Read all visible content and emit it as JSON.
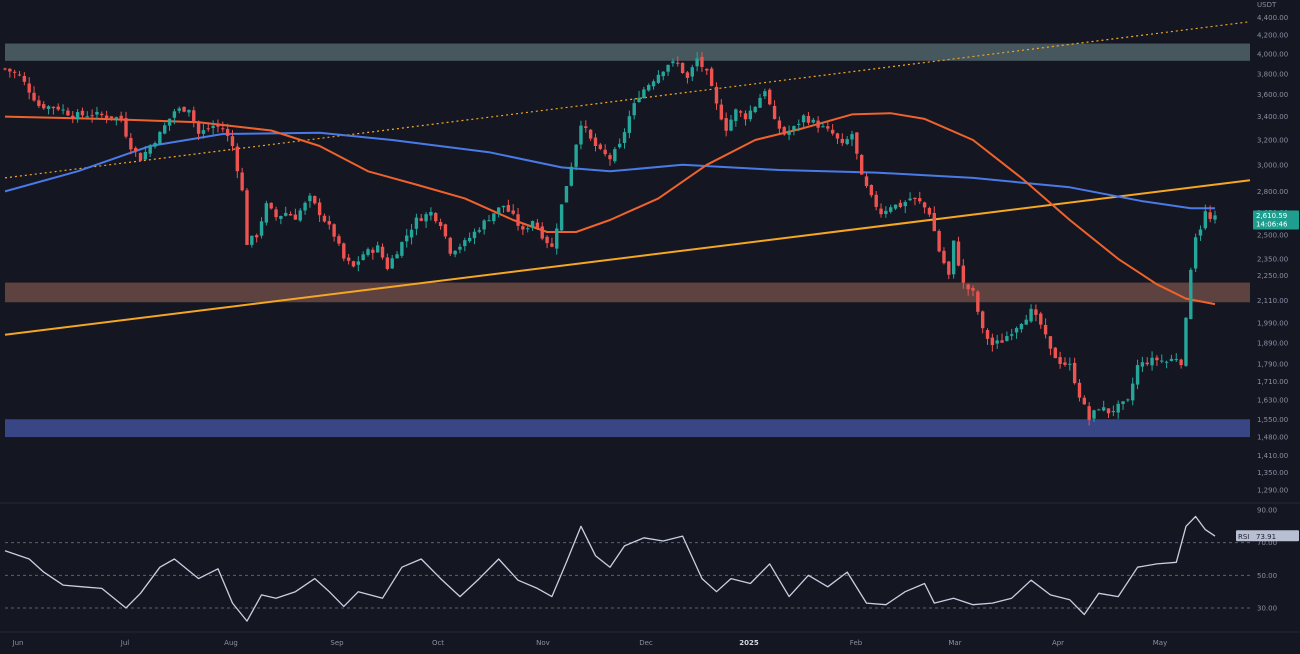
{
  "currency_label": "USDT",
  "colors": {
    "background": "#141722",
    "up": "#26a69a",
    "down": "#ef5350",
    "ma_fast": "#f0622c",
    "ma_slow": "#4a7ae8",
    "trendline": "#f5a623",
    "rsi_line": "#c9cfe2",
    "zone_top": "#4f6469",
    "zone_mid": "#6b4a45",
    "zone_bottom": "#3f4f96",
    "axis_text": "#8a8fa3",
    "last_price_bg": "#1f9e8f",
    "rsi_badge_bg": "#b9bfd2",
    "rsi_badge_text": "#1b1e2b"
  },
  "last_price": {
    "price": "2,610.59",
    "countdown": "14:06:46"
  },
  "rsi_badge": {
    "label": "RSI",
    "value": "73.91"
  },
  "chart_data": [
    {
      "type": "candlestick",
      "pair_quote": "USDT",
      "y_scale": "log",
      "ylim": [
        1240,
        4700
      ],
      "x_tick_labels": [
        "Jun",
        "Jul",
        "Aug",
        "Sep",
        "Oct",
        "Nov",
        "Dec",
        "2025",
        "Feb",
        "Mar",
        "Apr",
        "May"
      ],
      "y_tick_labels": [
        {
          "value": 4400,
          "label": "4,400.00"
        },
        {
          "value": 4200,
          "label": "4,200.00"
        },
        {
          "value": 4000,
          "label": "4,000.00"
        },
        {
          "value": 3800,
          "label": "3,800.00"
        },
        {
          "value": 3600,
          "label": "3,600.00"
        },
        {
          "value": 3400,
          "label": "3,400.00"
        },
        {
          "value": 3200,
          "label": "3,200.00"
        },
        {
          "value": 3000,
          "label": "3,000.00"
        },
        {
          "value": 2800,
          "label": "2,800.00"
        },
        {
          "value": 2650,
          "label": "2,650.00"
        },
        {
          "value": 2500,
          "label": "2,500.00"
        },
        {
          "value": 2350,
          "label": "2,350.00"
        },
        {
          "value": 2250,
          "label": "2,250.00"
        },
        {
          "value": 2110,
          "label": "2,110.00"
        },
        {
          "value": 1990,
          "label": "1,990.00"
        },
        {
          "value": 1890,
          "label": "1,890.00"
        },
        {
          "value": 1790,
          "label": "1,790.00"
        },
        {
          "value": 1710,
          "label": "1,710.00"
        },
        {
          "value": 1630,
          "label": "1,630.00"
        },
        {
          "value": 1550,
          "label": "1,550.00"
        },
        {
          "value": 1480,
          "label": "1,480.00"
        },
        {
          "value": 1410,
          "label": "1,410.00"
        },
        {
          "value": 1350,
          "label": "1,350.00"
        },
        {
          "value": 1290,
          "label": "1,290.00"
        }
      ],
      "zones": [
        {
          "name": "resistance",
          "low": 3930,
          "high": 4110
        },
        {
          "name": "mid-support",
          "low": 2100,
          "high": 2210
        },
        {
          "name": "support",
          "low": 1480,
          "high": 1550
        }
      ],
      "close_path": [
        {
          "t": 0,
          "v": 3850
        },
        {
          "t": 3,
          "v": 3780
        },
        {
          "t": 7,
          "v": 3500
        },
        {
          "t": 11,
          "v": 3480
        },
        {
          "t": 14,
          "v": 3410
        },
        {
          "t": 18,
          "v": 3420
        },
        {
          "t": 22,
          "v": 3400
        },
        {
          "t": 24,
          "v": 3380
        },
        {
          "t": 25,
          "v": 3250
        },
        {
          "t": 26,
          "v": 3150
        },
        {
          "t": 28,
          "v": 3050
        },
        {
          "t": 30,
          "v": 3150
        },
        {
          "t": 32,
          "v": 3250
        },
        {
          "t": 35,
          "v": 3450
        },
        {
          "t": 38,
          "v": 3480
        },
        {
          "t": 40,
          "v": 3250
        },
        {
          "t": 43,
          "v": 3320
        },
        {
          "t": 45,
          "v": 3300
        },
        {
          "t": 47,
          "v": 3150
        },
        {
          "t": 49,
          "v": 2800
        },
        {
          "t": 50,
          "v": 2450
        },
        {
          "t": 52,
          "v": 2500
        },
        {
          "t": 54,
          "v": 2700
        },
        {
          "t": 56,
          "v": 2620
        },
        {
          "t": 58,
          "v": 2650
        },
        {
          "t": 60,
          "v": 2620
        },
        {
          "t": 63,
          "v": 2750
        },
        {
          "t": 66,
          "v": 2600
        },
        {
          "t": 68,
          "v": 2500
        },
        {
          "t": 70,
          "v": 2350
        },
        {
          "t": 72,
          "v": 2300
        },
        {
          "t": 74,
          "v": 2380
        },
        {
          "t": 77,
          "v": 2420
        },
        {
          "t": 79,
          "v": 2300
        },
        {
          "t": 82,
          "v": 2450
        },
        {
          "t": 85,
          "v": 2600
        },
        {
          "t": 88,
          "v": 2650
        },
        {
          "t": 90,
          "v": 2580
        },
        {
          "t": 92,
          "v": 2400
        },
        {
          "t": 95,
          "v": 2450
        },
        {
          "t": 98,
          "v": 2550
        },
        {
          "t": 101,
          "v": 2650
        },
        {
          "t": 103,
          "v": 2700
        },
        {
          "t": 105,
          "v": 2620
        },
        {
          "t": 107,
          "v": 2520
        },
        {
          "t": 109,
          "v": 2600
        },
        {
          "t": 111,
          "v": 2500
        },
        {
          "t": 113,
          "v": 2420
        },
        {
          "t": 115,
          "v": 2700
        },
        {
          "t": 117,
          "v": 3000
        },
        {
          "t": 119,
          "v": 3350
        },
        {
          "t": 121,
          "v": 3200
        },
        {
          "t": 123,
          "v": 3100
        },
        {
          "t": 125,
          "v": 3050
        },
        {
          "t": 127,
          "v": 3150
        },
        {
          "t": 129,
          "v": 3400
        },
        {
          "t": 131,
          "v": 3600
        },
        {
          "t": 133,
          "v": 3700
        },
        {
          "t": 135,
          "v": 3800
        },
        {
          "t": 137,
          "v": 3900
        },
        {
          "t": 139,
          "v": 3900
        },
        {
          "t": 141,
          "v": 3750
        },
        {
          "t": 143,
          "v": 3950
        },
        {
          "t": 145,
          "v": 3800
        },
        {
          "t": 147,
          "v": 3500
        },
        {
          "t": 149,
          "v": 3300
        },
        {
          "t": 151,
          "v": 3450
        },
        {
          "t": 153,
          "v": 3400
        },
        {
          "t": 155,
          "v": 3500
        },
        {
          "t": 157,
          "v": 3650
        },
        {
          "t": 159,
          "v": 3350
        },
        {
          "t": 161,
          "v": 3250
        },
        {
          "t": 163,
          "v": 3300
        },
        {
          "t": 165,
          "v": 3400
        },
        {
          "t": 167,
          "v": 3350
        },
        {
          "t": 169,
          "v": 3300
        },
        {
          "t": 171,
          "v": 3250
        },
        {
          "t": 173,
          "v": 3150
        },
        {
          "t": 175,
          "v": 3250
        },
        {
          "t": 177,
          "v": 2900
        },
        {
          "t": 179,
          "v": 2750
        },
        {
          "t": 181,
          "v": 2650
        },
        {
          "t": 183,
          "v": 2700
        },
        {
          "t": 185,
          "v": 2700
        },
        {
          "t": 187,
          "v": 2750
        },
        {
          "t": 189,
          "v": 2720
        },
        {
          "t": 191,
          "v": 2650
        },
        {
          "t": 193,
          "v": 2400
        },
        {
          "t": 195,
          "v": 2250
        },
        {
          "t": 196,
          "v": 2450
        },
        {
          "t": 198,
          "v": 2200
        },
        {
          "t": 200,
          "v": 2150
        },
        {
          "t": 202,
          "v": 1950
        },
        {
          "t": 204,
          "v": 1880
        },
        {
          "t": 206,
          "v": 1900
        },
        {
          "t": 208,
          "v": 1950
        },
        {
          "t": 210,
          "v": 2000
        },
        {
          "t": 212,
          "v": 2050
        },
        {
          "t": 214,
          "v": 1980
        },
        {
          "t": 216,
          "v": 1850
        },
        {
          "t": 218,
          "v": 1800
        },
        {
          "t": 220,
          "v": 1780
        },
        {
          "t": 222,
          "v": 1650
        },
        {
          "t": 224,
          "v": 1550
        },
        {
          "t": 226,
          "v": 1600
        },
        {
          "t": 228,
          "v": 1580
        },
        {
          "t": 230,
          "v": 1600
        },
        {
          "t": 232,
          "v": 1620
        },
        {
          "t": 234,
          "v": 1780
        },
        {
          "t": 236,
          "v": 1800
        },
        {
          "t": 238,
          "v": 1810
        },
        {
          "t": 240,
          "v": 1800
        },
        {
          "t": 242,
          "v": 1820
        },
        {
          "t": 243,
          "v": 1800
        },
        {
          "t": 244,
          "v": 2000
        },
        {
          "t": 245,
          "v": 2300
        },
        {
          "t": 246,
          "v": 2500
        },
        {
          "t": 247,
          "v": 2550
        },
        {
          "t": 248,
          "v": 2650
        },
        {
          "t": 249,
          "v": 2600
        },
        {
          "t": 250,
          "v": 2610
        }
      ],
      "sma_fast_path": [
        {
          "t": 0,
          "v": 3400
        },
        {
          "t": 20,
          "v": 3380
        },
        {
          "t": 40,
          "v": 3350
        },
        {
          "t": 55,
          "v": 3280
        },
        {
          "t": 65,
          "v": 3150
        },
        {
          "t": 75,
          "v": 2950
        },
        {
          "t": 85,
          "v": 2850
        },
        {
          "t": 95,
          "v": 2750
        },
        {
          "t": 105,
          "v": 2600
        },
        {
          "t": 112,
          "v": 2520
        },
        {
          "t": 118,
          "v": 2520
        },
        {
          "t": 125,
          "v": 2600
        },
        {
          "t": 135,
          "v": 2750
        },
        {
          "t": 145,
          "v": 3000
        },
        {
          "t": 155,
          "v": 3200
        },
        {
          "t": 165,
          "v": 3300
        },
        {
          "t": 175,
          "v": 3420
        },
        {
          "t": 183,
          "v": 3430
        },
        {
          "t": 190,
          "v": 3380
        },
        {
          "t": 200,
          "v": 3200
        },
        {
          "t": 210,
          "v": 2900
        },
        {
          "t": 220,
          "v": 2600
        },
        {
          "t": 230,
          "v": 2350
        },
        {
          "t": 238,
          "v": 2200
        },
        {
          "t": 244,
          "v": 2120
        },
        {
          "t": 250,
          "v": 2090
        }
      ],
      "sma_slow_path": [
        {
          "t": 0,
          "v": 2800
        },
        {
          "t": 15,
          "v": 2950
        },
        {
          "t": 30,
          "v": 3150
        },
        {
          "t": 45,
          "v": 3250
        },
        {
          "t": 65,
          "v": 3260
        },
        {
          "t": 80,
          "v": 3200
        },
        {
          "t": 100,
          "v": 3100
        },
        {
          "t": 115,
          "v": 2980
        },
        {
          "t": 125,
          "v": 2950
        },
        {
          "t": 140,
          "v": 3000
        },
        {
          "t": 160,
          "v": 2960
        },
        {
          "t": 180,
          "v": 2940
        },
        {
          "t": 200,
          "v": 2900
        },
        {
          "t": 220,
          "v": 2830
        },
        {
          "t": 235,
          "v": 2730
        },
        {
          "t": 245,
          "v": 2680
        },
        {
          "t": 250,
          "v": 2680
        }
      ],
      "trendlines": [
        {
          "name": "ascending-support",
          "style": "solid",
          "from": {
            "t": 0,
            "v": 1930
          },
          "to": {
            "t": 250,
            "v": 2850
          }
        },
        {
          "name": "ascending-resistance",
          "style": "dotted",
          "from": {
            "t": 0,
            "v": 2900
          },
          "to": {
            "t": 250,
            "v": 4300
          }
        },
        {
          "name": "upper-channel",
          "style": "solid",
          "from": {
            "t": 0,
            "v": 4650
          },
          "to": {
            "t": 32,
            "v": 4800
          }
        }
      ]
    },
    {
      "type": "line",
      "name": "RSI",
      "ylim": [
        20,
        90
      ],
      "y_tick_labels": [
        {
          "value": 90,
          "label": "90.00"
        },
        {
          "value": 70,
          "label": "70.00"
        },
        {
          "value": 50,
          "label": "50.00"
        },
        {
          "value": 30,
          "label": "30.00"
        }
      ],
      "reference_lines": [
        70,
        50,
        30
      ],
      "series": [
        {
          "t": 0,
          "v": 65
        },
        {
          "t": 5,
          "v": 60
        },
        {
          "t": 8,
          "v": 52
        },
        {
          "t": 12,
          "v": 44
        },
        {
          "t": 16,
          "v": 43
        },
        {
          "t": 20,
          "v": 42
        },
        {
          "t": 25,
          "v": 30
        },
        {
          "t": 28,
          "v": 39
        },
        {
          "t": 32,
          "v": 55
        },
        {
          "t": 35,
          "v": 60
        },
        {
          "t": 40,
          "v": 48
        },
        {
          "t": 44,
          "v": 54
        },
        {
          "t": 47,
          "v": 33
        },
        {
          "t": 50,
          "v": 22
        },
        {
          "t": 53,
          "v": 38
        },
        {
          "t": 56,
          "v": 36
        },
        {
          "t": 60,
          "v": 40
        },
        {
          "t": 64,
          "v": 48
        },
        {
          "t": 67,
          "v": 40
        },
        {
          "t": 70,
          "v": 31
        },
        {
          "t": 73,
          "v": 40
        },
        {
          "t": 78,
          "v": 36
        },
        {
          "t": 82,
          "v": 55
        },
        {
          "t": 86,
          "v": 60
        },
        {
          "t": 90,
          "v": 48
        },
        {
          "t": 94,
          "v": 37
        },
        {
          "t": 98,
          "v": 48
        },
        {
          "t": 102,
          "v": 60
        },
        {
          "t": 106,
          "v": 47
        },
        {
          "t": 110,
          "v": 42
        },
        {
          "t": 113,
          "v": 37
        },
        {
          "t": 116,
          "v": 58
        },
        {
          "t": 119,
          "v": 80
        },
        {
          "t": 122,
          "v": 62
        },
        {
          "t": 125,
          "v": 55
        },
        {
          "t": 128,
          "v": 68
        },
        {
          "t": 132,
          "v": 73
        },
        {
          "t": 136,
          "v": 71
        },
        {
          "t": 140,
          "v": 74
        },
        {
          "t": 144,
          "v": 48
        },
        {
          "t": 147,
          "v": 40
        },
        {
          "t": 150,
          "v": 48
        },
        {
          "t": 154,
          "v": 45
        },
        {
          "t": 158,
          "v": 57
        },
        {
          "t": 162,
          "v": 37
        },
        {
          "t": 166,
          "v": 50
        },
        {
          "t": 170,
          "v": 43
        },
        {
          "t": 174,
          "v": 52
        },
        {
          "t": 178,
          "v": 33
        },
        {
          "t": 182,
          "v": 32
        },
        {
          "t": 186,
          "v": 40
        },
        {
          "t": 190,
          "v": 45
        },
        {
          "t": 192,
          "v": 33
        },
        {
          "t": 196,
          "v": 36
        },
        {
          "t": 200,
          "v": 32
        },
        {
          "t": 204,
          "v": 33
        },
        {
          "t": 208,
          "v": 36
        },
        {
          "t": 212,
          "v": 47
        },
        {
          "t": 216,
          "v": 38
        },
        {
          "t": 220,
          "v": 35
        },
        {
          "t": 223,
          "v": 26
        },
        {
          "t": 226,
          "v": 39
        },
        {
          "t": 230,
          "v": 37
        },
        {
          "t": 234,
          "v": 55
        },
        {
          "t": 238,
          "v": 57
        },
        {
          "t": 242,
          "v": 58
        },
        {
          "t": 244,
          "v": 80
        },
        {
          "t": 246,
          "v": 86
        },
        {
          "t": 248,
          "v": 78
        },
        {
          "t": 250,
          "v": 74
        }
      ]
    }
  ]
}
